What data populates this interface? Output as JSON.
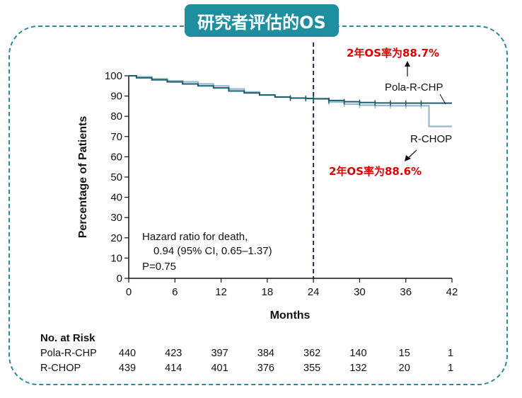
{
  "page_title": "研究者评估的OS",
  "colors": {
    "frame": "#2b8a9e",
    "badge": "#1f8fa0",
    "pola": "#1d5d6d",
    "rchop": "#93b9cb",
    "red": "#e00000"
  },
  "chart_data": {
    "type": "line",
    "title": "",
    "xlabel": "Months",
    "ylabel": "Percentage of Patients",
    "xlim": [
      0,
      42
    ],
    "ylim": [
      0,
      100
    ],
    "xticks": [
      0,
      6,
      12,
      18,
      24,
      30,
      36,
      42
    ],
    "yticks": [
      0,
      10,
      20,
      30,
      40,
      50,
      60,
      70,
      80,
      90,
      100
    ],
    "reference_line_x": 24,
    "series": [
      {
        "name": "Pola-R-CHP",
        "x": [
          0,
          1,
          3,
          5,
          7,
          9,
          11,
          13,
          15,
          17,
          19,
          21,
          23,
          24,
          26,
          28,
          30,
          32,
          34,
          36,
          38,
          40,
          42
        ],
        "y": [
          100,
          99,
          98,
          97,
          96,
          95,
          94,
          92.5,
          91.5,
          90.5,
          89.5,
          89,
          88.8,
          88.7,
          87.8,
          87.2,
          86.8,
          86.6,
          86.5,
          86.5,
          86.5,
          86.5,
          86.5
        ]
      },
      {
        "name": "R-CHOP",
        "x": [
          0,
          1,
          3,
          5,
          7,
          9,
          11,
          13,
          15,
          17,
          19,
          21,
          23,
          24,
          26,
          28,
          30,
          32,
          34,
          36,
          38,
          39,
          39.01,
          40,
          42
        ],
        "y": [
          100,
          99.5,
          98.5,
          97.5,
          97,
          96,
          95,
          93.5,
          92,
          90.5,
          89.5,
          89,
          88.7,
          88.6,
          87,
          86,
          85.5,
          85.3,
          85.2,
          85.2,
          85.2,
          85.2,
          75,
          75,
          75
        ]
      }
    ],
    "annotations": {
      "hazard_line1": "Hazard ratio for death,",
      "hazard_line2": "0.94 (95% CI, 0.65–1.37)",
      "p_value": "P=0.75",
      "pola_os": "2年OS率为88.7%",
      "rchop_os": "2年OS率为88.6%"
    },
    "risk_table": {
      "title": "No. at Risk",
      "rows": [
        {
          "label": "Pola-R-CHP",
          "values": [
            "440",
            "423",
            "397",
            "384",
            "362",
            "140",
            "15",
            "1"
          ]
        },
        {
          "label": "R-CHOP",
          "values": [
            "439",
            "414",
            "401",
            "376",
            "355",
            "132",
            "20",
            "1"
          ]
        }
      ]
    }
  }
}
